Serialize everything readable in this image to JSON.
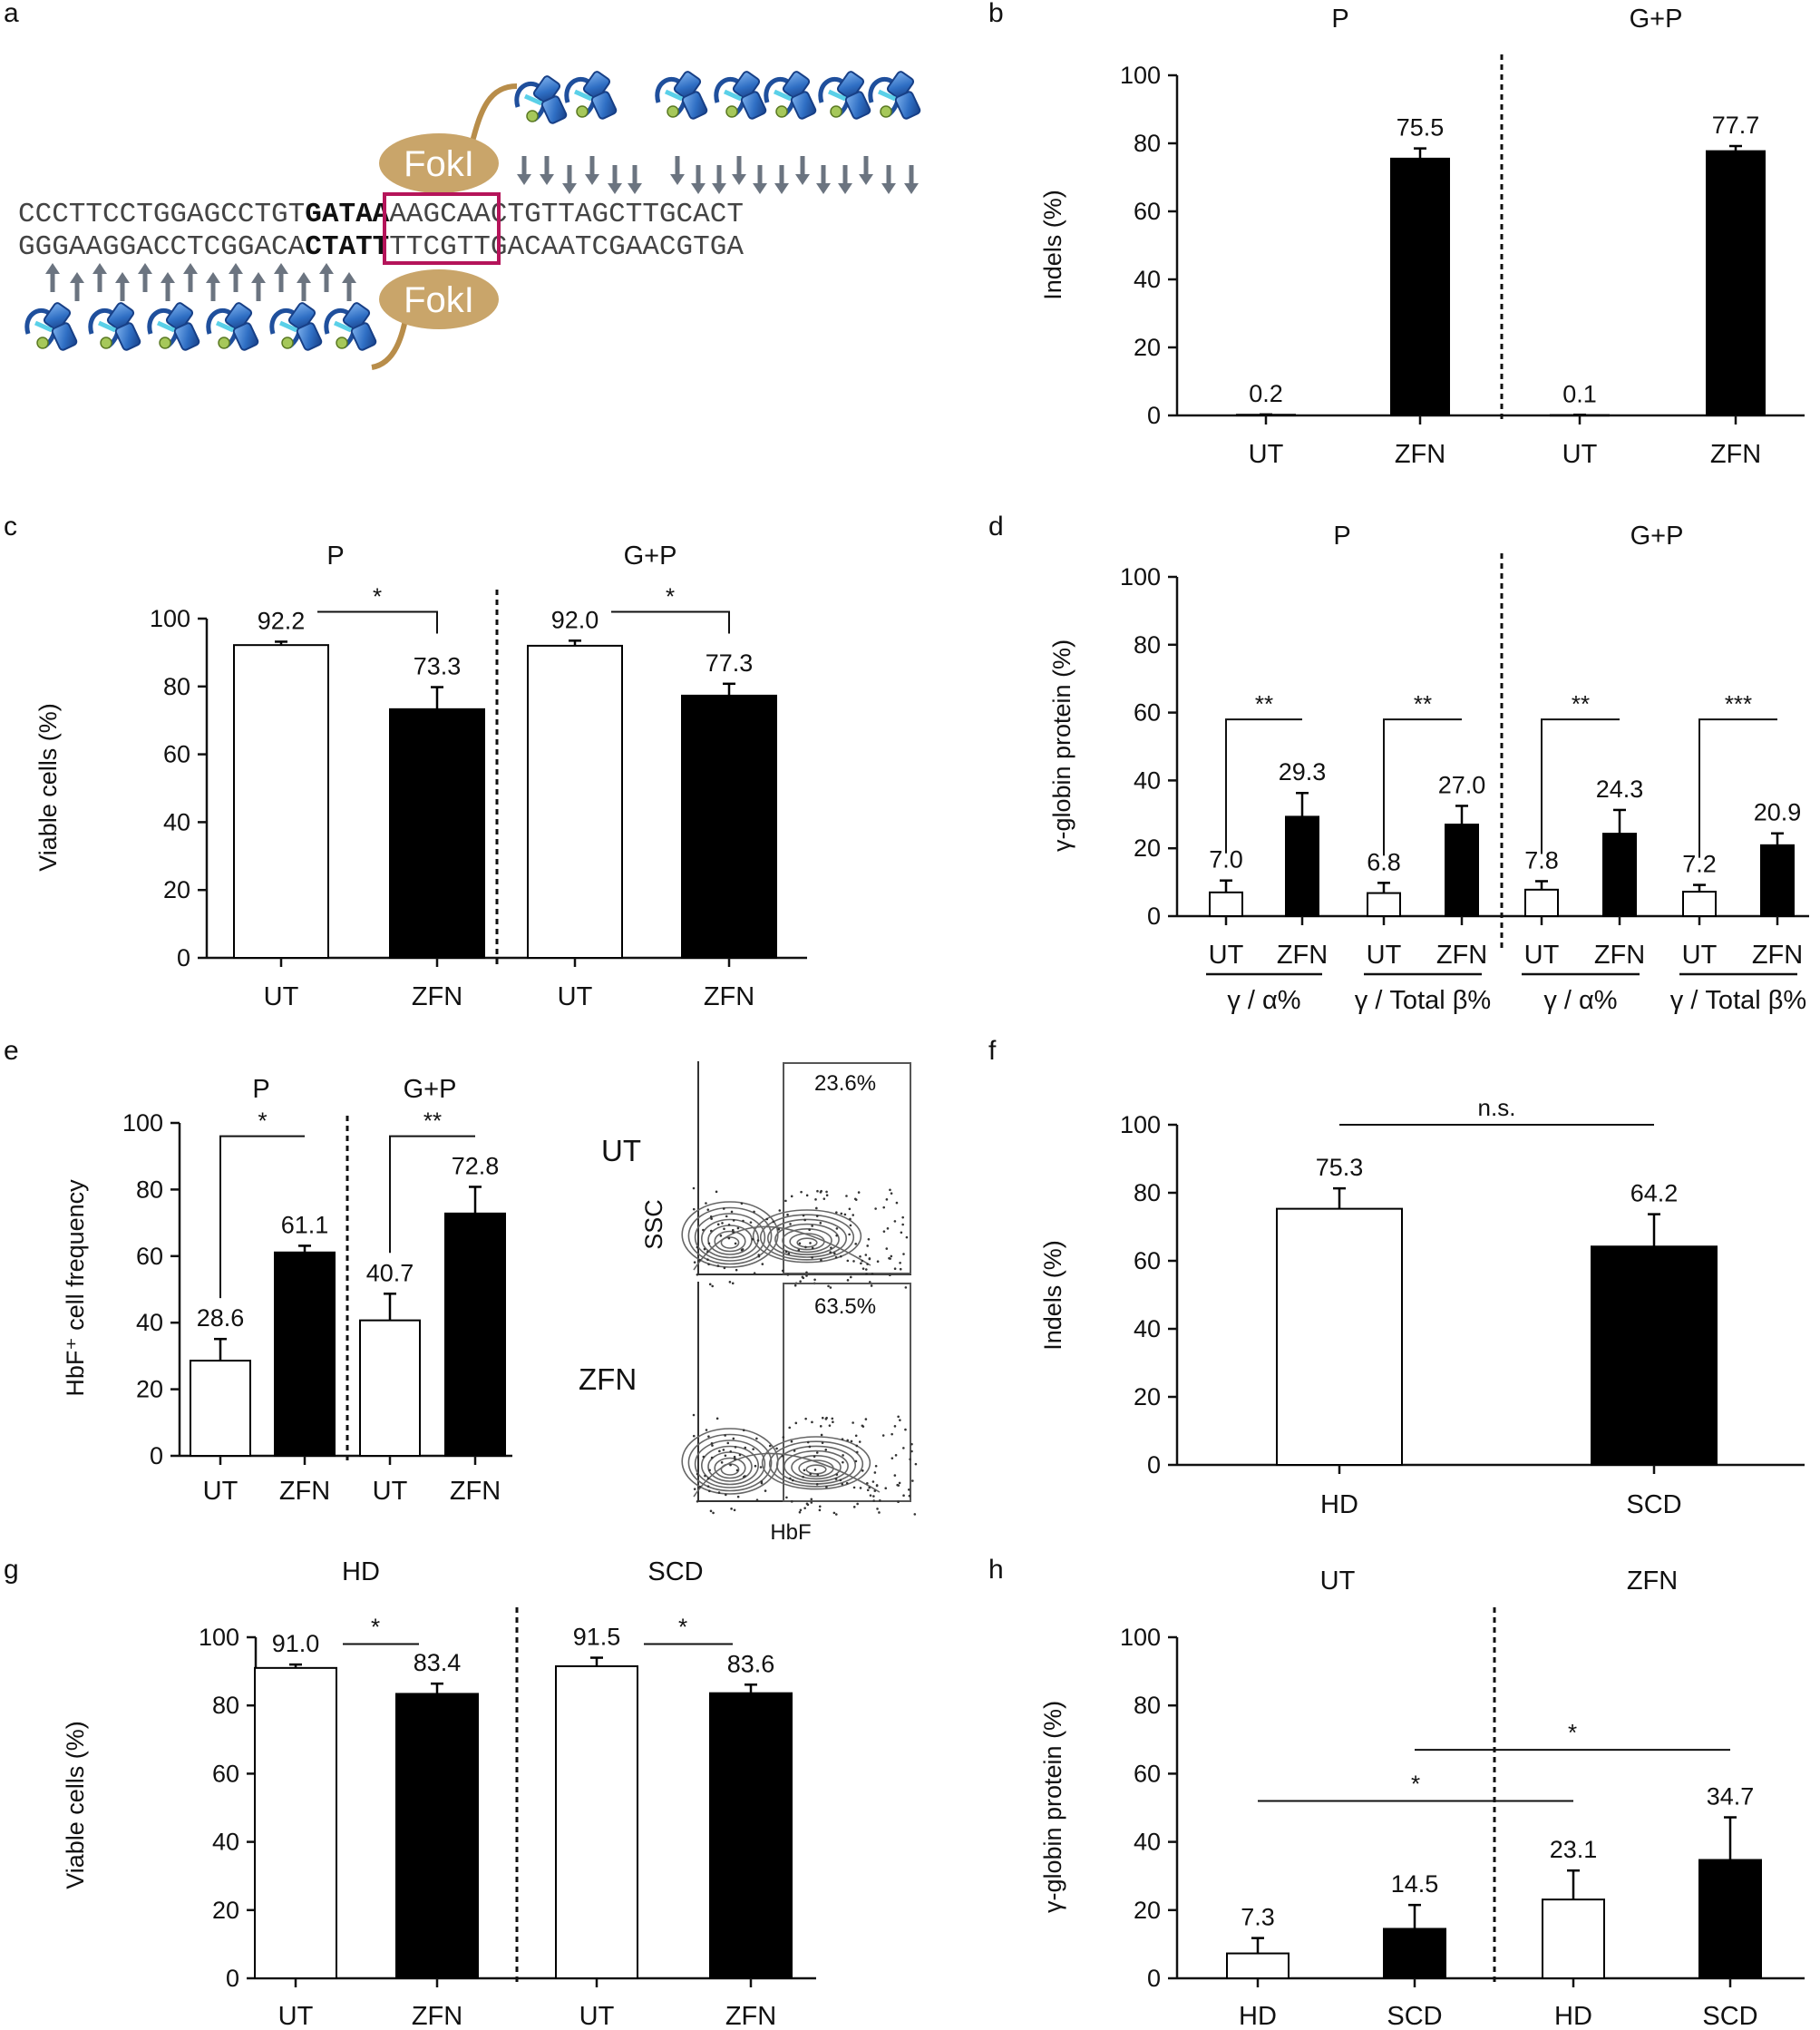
{
  "figure": {
    "panel_labels": [
      "a",
      "b",
      "c",
      "d",
      "e",
      "f",
      "g",
      "h"
    ],
    "schematic": {
      "top_strand": "CCCTTCCTGGAGCCTGTGATAAAAGCAACTGTTAGCTTGCACT",
      "bottom_strand": "GGGAAGGACCTCGGACACTATTTTCGTTGACAATCGAACGTGA",
      "top_parts": [
        "CCCTTCCTGGAGCCTGT",
        "GATAA",
        "AAGCAACTGTTAGCTTGCACT"
      ],
      "bottom_parts": [
        "GGGAAGGACCTCGGACA",
        "CTATT",
        "TTCGTTGACAATCGAACGTGA"
      ],
      "nuclease_top": "FokI",
      "nuclease_bottom": "FokI",
      "box_color": "#b5145a",
      "protein_color": "#3a78c9",
      "fokl_color": "#c9a56a"
    },
    "flow": {
      "ut_label": "UT",
      "zfn_label": "ZFN",
      "ut_pct": "23.6%",
      "zfn_pct": "63.5%",
      "y_axis": "SSC",
      "x_axis": "HbF"
    }
  },
  "chart_data": [
    {
      "panel": "b",
      "type": "bar",
      "groups": [
        "P",
        "G+P"
      ],
      "categories": [
        "UT",
        "ZFN",
        "UT",
        "ZFN"
      ],
      "values": [
        0.2,
        75.5,
        0.1,
        77.7
      ],
      "errors": [
        0.1,
        3.0,
        0.1,
        1.5
      ],
      "value_labels": [
        "0.2",
        "75.5",
        "0.1",
        "77.7"
      ],
      "fill": [
        "white",
        "black",
        "white",
        "black"
      ],
      "ylabel": "Indels (%)",
      "ylim": [
        0,
        100
      ],
      "yticks": [
        "0",
        "20",
        "40",
        "60",
        "80",
        "100"
      ],
      "separators_after": [
        2
      ],
      "significance": []
    },
    {
      "panel": "c",
      "type": "bar",
      "groups": [
        "P",
        "G+P"
      ],
      "categories": [
        "UT",
        "ZFN",
        "UT",
        "ZFN"
      ],
      "values": [
        92.2,
        73.3,
        92.0,
        77.3
      ],
      "errors": [
        1.0,
        6.5,
        1.5,
        3.5
      ],
      "value_labels": [
        "92.2",
        "73.3",
        "92.0",
        "77.3"
      ],
      "fill": [
        "white",
        "black",
        "white",
        "black"
      ],
      "ylabel": "Viable cells (%)",
      "ylim": [
        0,
        100
      ],
      "yticks": [
        "0",
        "20",
        "40",
        "60",
        "80",
        "100"
      ],
      "separators_after": [
        2
      ],
      "significance": [
        {
          "from": 0,
          "to": 1,
          "label": "*",
          "style": "bracket-down",
          "level": 102
        },
        {
          "from": 2,
          "to": 3,
          "label": "*",
          "style": "bracket-down",
          "level": 102
        }
      ]
    },
    {
      "panel": "d",
      "type": "bar",
      "groups": [
        "P",
        "G+P"
      ],
      "categories": [
        "UT",
        "ZFN",
        "UT",
        "ZFN",
        "UT",
        "ZFN",
        "UT",
        "ZFN"
      ],
      "values": [
        7.0,
        29.3,
        6.8,
        27.0,
        7.8,
        24.3,
        7.2,
        20.9
      ],
      "errors": [
        3.5,
        7.0,
        3.0,
        5.5,
        2.5,
        7.0,
        2.0,
        3.5
      ],
      "value_labels": [
        "7.0",
        "29.3",
        "6.8",
        "27.0",
        "7.8",
        "24.3",
        "7.2",
        "20.9"
      ],
      "fill": [
        "white",
        "black",
        "white",
        "black",
        "white",
        "black",
        "white",
        "black"
      ],
      "sublabels": [
        "γ / α%",
        "γ / Total β%",
        "γ / α%",
        "γ / Total β%"
      ],
      "ylabel": "γ-globin protein (%)",
      "ylim": [
        0,
        100
      ],
      "yticks": [
        "0",
        "20",
        "40",
        "60",
        "80",
        "100"
      ],
      "separators_after": [
        4
      ],
      "significance": [
        {
          "from": 0,
          "to": 1,
          "label": "**",
          "style": "bracket-up",
          "level": 58
        },
        {
          "from": 2,
          "to": 3,
          "label": "**",
          "style": "bracket-up",
          "level": 58
        },
        {
          "from": 4,
          "to": 5,
          "label": "**",
          "style": "bracket-up",
          "level": 58
        },
        {
          "from": 6,
          "to": 7,
          "label": "***",
          "style": "bracket-up",
          "level": 58
        }
      ]
    },
    {
      "panel": "e",
      "type": "bar",
      "groups": [
        "P",
        "G+P"
      ],
      "categories": [
        "UT",
        "ZFN",
        "UT",
        "ZFN"
      ],
      "values": [
        28.6,
        61.1,
        40.7,
        72.8
      ],
      "errors": [
        6.5,
        2.0,
        8.0,
        8.0
      ],
      "value_labels": [
        "28.6",
        "61.1",
        "40.7",
        "72.8"
      ],
      "fill": [
        "white",
        "black",
        "white",
        "black"
      ],
      "ylabel": "HbF⁺ cell frequency",
      "ylim": [
        0,
        100
      ],
      "yticks": [
        "0",
        "20",
        "40",
        "60",
        "80",
        "100"
      ],
      "separators_after": [
        2
      ],
      "significance": [
        {
          "from": 0,
          "to": 1,
          "label": "*",
          "style": "bracket-up",
          "level": 96
        },
        {
          "from": 2,
          "to": 3,
          "label": "**",
          "style": "bracket-up",
          "level": 96
        }
      ]
    },
    {
      "panel": "f",
      "type": "bar",
      "groups": [],
      "categories": [
        "HD",
        "SCD"
      ],
      "values": [
        75.3,
        64.2
      ],
      "errors": [
        6.0,
        9.5
      ],
      "value_labels": [
        "75.3",
        "64.2"
      ],
      "fill": [
        "white",
        "black"
      ],
      "ylabel": "Indels (%)",
      "ylim": [
        0,
        100
      ],
      "yticks": [
        "0",
        "20",
        "40",
        "60",
        "80",
        "100"
      ],
      "separators_after": [],
      "significance": [
        {
          "from": 0,
          "to": 1,
          "label": "n.s.",
          "style": "line",
          "level": 100
        }
      ]
    },
    {
      "panel": "g",
      "type": "bar",
      "groups": [
        "HD",
        "SCD"
      ],
      "categories": [
        "UT",
        "ZFN",
        "UT",
        "ZFN"
      ],
      "values": [
        91.0,
        83.4,
        91.5,
        83.6
      ],
      "errors": [
        1.0,
        3.0,
        2.5,
        2.5
      ],
      "value_labels": [
        "91.0",
        "83.4",
        "91.5",
        "83.6"
      ],
      "fill": [
        "white",
        "black",
        "white",
        "black"
      ],
      "ylabel": "Viable cells (%)",
      "ylim": [
        0,
        100
      ],
      "yticks": [
        "0",
        "20",
        "40",
        "60",
        "80",
        "100"
      ],
      "separators_after": [
        2
      ],
      "significance": [
        {
          "from": 0,
          "to": 1,
          "label": "*",
          "style": "line",
          "level": 98
        },
        {
          "from": 2,
          "to": 3,
          "label": "*",
          "style": "line",
          "level": 98
        }
      ]
    },
    {
      "panel": "h",
      "type": "bar",
      "groups": [
        "UT",
        "ZFN"
      ],
      "categories": [
        "HD",
        "SCD",
        "HD",
        "SCD"
      ],
      "values": [
        7.3,
        14.5,
        23.1,
        34.7
      ],
      "errors": [
        4.5,
        7.0,
        8.5,
        12.5
      ],
      "value_labels": [
        "7.3",
        "14.5",
        "23.1",
        "34.7"
      ],
      "fill": [
        "white",
        "black",
        "white",
        "black"
      ],
      "ylabel": "γ-globin protein (%)",
      "ylim": [
        0,
        100
      ],
      "yticks": [
        "0",
        "20",
        "40",
        "60",
        "80",
        "100"
      ],
      "separators_after": [
        2
      ],
      "significance": [
        {
          "from": 0,
          "to": 2,
          "label": "*",
          "style": "line",
          "level": 52
        },
        {
          "from": 1,
          "to": 3,
          "label": "*",
          "style": "line",
          "level": 67
        }
      ]
    }
  ]
}
